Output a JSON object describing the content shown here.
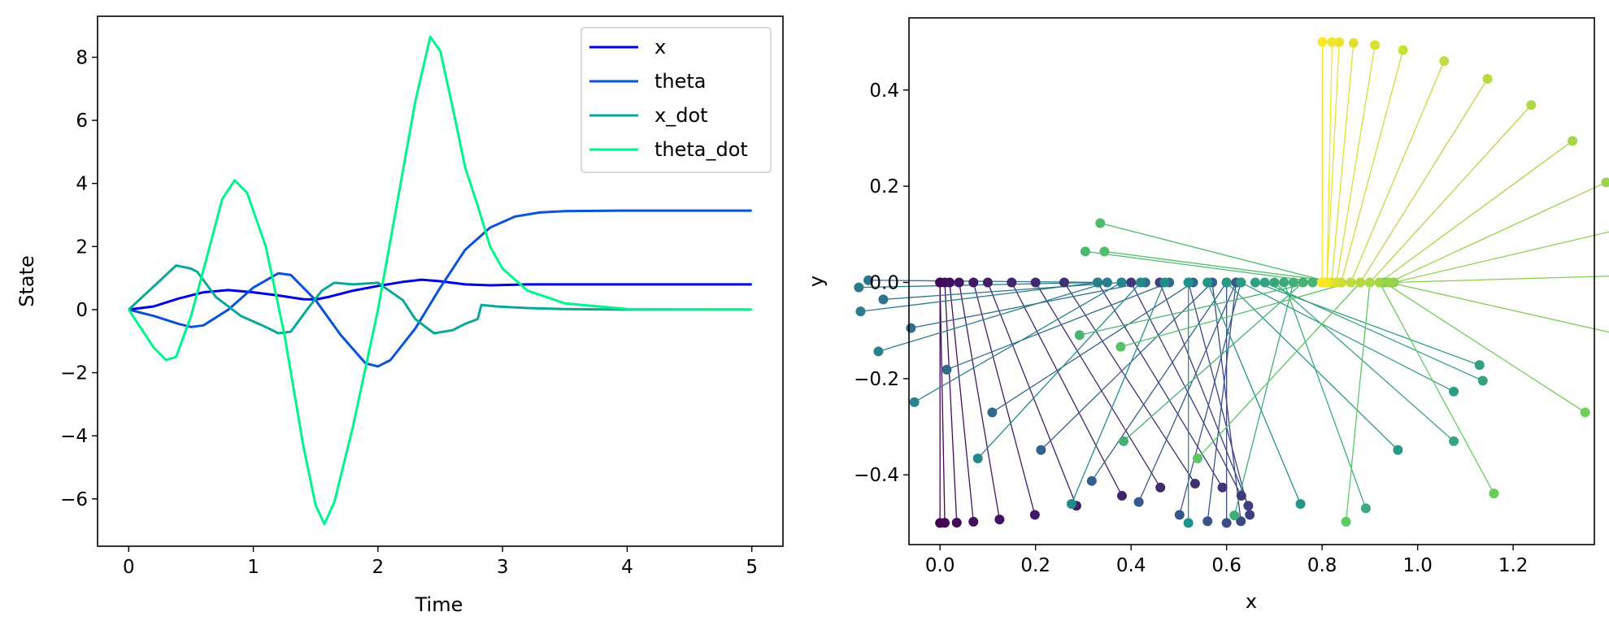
{
  "chart_data": [
    {
      "type": "line",
      "title": "",
      "xlabel": "Time",
      "ylabel": "State",
      "xlim": [
        -0.25,
        5.25
      ],
      "ylim": [
        -7.5,
        9.3
      ],
      "xticks": [
        "0",
        "1",
        "2",
        "3",
        "4",
        "5"
      ],
      "yticks": [
        "−6",
        "−4",
        "−2",
        "0",
        "2",
        "4",
        "6",
        "8"
      ],
      "legend_position": "top-right",
      "grid": false,
      "series": [
        {
          "name": "x",
          "color": "#0000e6",
          "points": [
            [
              0,
              0
            ],
            [
              0.2,
              0.1
            ],
            [
              0.4,
              0.35
            ],
            [
              0.6,
              0.55
            ],
            [
              0.8,
              0.62
            ],
            [
              1.0,
              0.55
            ],
            [
              1.2,
              0.45
            ],
            [
              1.4,
              0.33
            ],
            [
              1.5,
              0.32
            ],
            [
              1.6,
              0.4
            ],
            [
              1.8,
              0.6
            ],
            [
              2.0,
              0.75
            ],
            [
              2.2,
              0.88
            ],
            [
              2.35,
              0.95
            ],
            [
              2.5,
              0.9
            ],
            [
              2.7,
              0.8
            ],
            [
              2.9,
              0.77
            ],
            [
              3.2,
              0.8
            ],
            [
              4.0,
              0.8
            ],
            [
              5.0,
              0.8
            ]
          ]
        },
        {
          "name": "theta",
          "color": "#0a52d6",
          "points": [
            [
              0,
              0
            ],
            [
              0.2,
              -0.2
            ],
            [
              0.4,
              -0.45
            ],
            [
              0.5,
              -0.55
            ],
            [
              0.6,
              -0.5
            ],
            [
              0.8,
              0.0
            ],
            [
              1.0,
              0.7
            ],
            [
              1.2,
              1.15
            ],
            [
              1.3,
              1.1
            ],
            [
              1.5,
              0.3
            ],
            [
              1.7,
              -0.8
            ],
            [
              1.9,
              -1.7
            ],
            [
              2.0,
              -1.8
            ],
            [
              2.1,
              -1.6
            ],
            [
              2.3,
              -0.6
            ],
            [
              2.5,
              0.7
            ],
            [
              2.7,
              1.9
            ],
            [
              2.9,
              2.6
            ],
            [
              3.1,
              2.95
            ],
            [
              3.3,
              3.08
            ],
            [
              3.5,
              3.12
            ],
            [
              4.0,
              3.14
            ],
            [
              5.0,
              3.14
            ]
          ]
        },
        {
          "name": "x_dot",
          "color": "#0aa898",
          "points": [
            [
              0,
              0
            ],
            [
              0.15,
              0.55
            ],
            [
              0.3,
              1.1
            ],
            [
              0.38,
              1.4
            ],
            [
              0.5,
              1.3
            ],
            [
              0.55,
              1.2
            ],
            [
              0.7,
              0.4
            ],
            [
              0.9,
              -0.2
            ],
            [
              1.1,
              -0.55
            ],
            [
              1.2,
              -0.75
            ],
            [
              1.3,
              -0.7
            ],
            [
              1.45,
              0.1
            ],
            [
              1.55,
              0.6
            ],
            [
              1.65,
              0.85
            ],
            [
              1.8,
              0.8
            ],
            [
              2.0,
              0.85
            ],
            [
              2.2,
              0.3
            ],
            [
              2.3,
              -0.3
            ],
            [
              2.45,
              -0.75
            ],
            [
              2.6,
              -0.65
            ],
            [
              2.7,
              -0.45
            ],
            [
              2.8,
              -0.3
            ],
            [
              2.83,
              0.15
            ],
            [
              2.95,
              0.1
            ],
            [
              3.2,
              0.05
            ],
            [
              3.5,
              0.02
            ],
            [
              4.0,
              0
            ],
            [
              5.0,
              0
            ]
          ]
        },
        {
          "name": "theta_dot",
          "color": "#00f58a",
          "points": [
            [
              0,
              0
            ],
            [
              0.1,
              -0.6
            ],
            [
              0.2,
              -1.2
            ],
            [
              0.3,
              -1.6
            ],
            [
              0.38,
              -1.5
            ],
            [
              0.5,
              -0.2
            ],
            [
              0.65,
              2.0
            ],
            [
              0.75,
              3.5
            ],
            [
              0.85,
              4.1
            ],
            [
              0.95,
              3.7
            ],
            [
              1.1,
              2.0
            ],
            [
              1.25,
              -0.8
            ],
            [
              1.4,
              -4.3
            ],
            [
              1.5,
              -6.2
            ],
            [
              1.57,
              -6.8
            ],
            [
              1.65,
              -6.1
            ],
            [
              1.8,
              -3.7
            ],
            [
              2.0,
              0.0
            ],
            [
              2.15,
              3.3
            ],
            [
              2.3,
              6.6
            ],
            [
              2.42,
              8.65
            ],
            [
              2.5,
              8.2
            ],
            [
              2.6,
              6.4
            ],
            [
              2.7,
              4.5
            ],
            [
              2.8,
              3.3
            ],
            [
              2.9,
              2.0
            ],
            [
              3.0,
              1.3
            ],
            [
              3.2,
              0.6
            ],
            [
              3.5,
              0.2
            ],
            [
              4.0,
              0.02
            ],
            [
              5.0,
              0
            ]
          ]
        }
      ]
    },
    {
      "type": "scatter",
      "title": "",
      "xlabel": "x",
      "ylabel": "y",
      "xlim": [
        -0.065,
        1.37
      ],
      "ylim": [
        -0.545,
        0.55
      ],
      "xticks": [
        "0.0",
        "0.2",
        "0.4",
        "0.6",
        "0.8",
        "1.0",
        "1.2"
      ],
      "yticks": [
        "−0.4",
        "−0.2",
        "0.0",
        "0.2",
        "0.4"
      ],
      "grid": false,
      "colormap": [
        "#440154",
        "#3b528b",
        "#21918c",
        "#5ec962",
        "#fde725"
      ],
      "pendulum_length": 0.5,
      "frames": [
        {
          "x": 0.0,
          "theta": 0.0
        },
        {
          "x": 0.0,
          "theta": 0.02
        },
        {
          "x": 0.01,
          "theta": 0.05
        },
        {
          "x": 0.02,
          "theta": 0.1
        },
        {
          "x": 0.04,
          "theta": 0.17
        },
        {
          "x": 0.07,
          "theta": 0.26
        },
        {
          "x": 0.1,
          "theta": 0.38
        },
        {
          "x": 0.15,
          "theta": 0.48
        },
        {
          "x": 0.2,
          "theta": 0.55
        },
        {
          "x": 0.26,
          "theta": 0.58
        },
        {
          "x": 0.33,
          "theta": 0.55
        },
        {
          "x": 0.4,
          "theta": 0.48
        },
        {
          "x": 0.46,
          "theta": 0.38
        },
        {
          "x": 0.52,
          "theta": 0.26
        },
        {
          "x": 0.57,
          "theta": 0.12
        },
        {
          "x": 0.6,
          "theta": 0.0
        },
        {
          "x": 0.62,
          "theta": -0.12
        },
        {
          "x": 0.63,
          "theta": -0.26
        },
        {
          "x": 0.62,
          "theta": -0.42
        },
        {
          "x": 0.6,
          "theta": -0.6
        },
        {
          "x": 0.57,
          "theta": -0.8
        },
        {
          "x": 0.53,
          "theta": -1.0
        },
        {
          "x": 0.48,
          "theta": -1.2
        },
        {
          "x": 0.43,
          "theta": -1.38
        },
        {
          "x": 0.38,
          "theta": -1.5
        },
        {
          "x": 0.35,
          "theta": -1.58
        },
        {
          "x": 0.33,
          "theta": -1.55
        },
        {
          "x": 0.33,
          "theta": -1.45
        },
        {
          "x": 0.35,
          "theta": -1.28
        },
        {
          "x": 0.38,
          "theta": -1.05
        },
        {
          "x": 0.42,
          "theta": -0.75
        },
        {
          "x": 0.47,
          "theta": -0.4
        },
        {
          "x": 0.52,
          "theta": 0.0
        },
        {
          "x": 0.56,
          "theta": 0.4
        },
        {
          "x": 0.6,
          "theta": 0.8
        },
        {
          "x": 0.63,
          "theta": 1.1
        },
        {
          "x": 0.66,
          "theta": 1.22
        },
        {
          "x": 0.68,
          "theta": 1.15
        },
        {
          "x": 0.7,
          "theta": 0.85
        },
        {
          "x": 0.72,
          "theta": 0.35
        },
        {
          "x": 0.74,
          "theta": -0.25
        },
        {
          "x": 0.76,
          "theta": -0.85
        },
        {
          "x": 0.78,
          "theta": -1.35
        },
        {
          "x": 0.8,
          "theta": -1.7
        },
        {
          "x": 0.82,
          "theta": -1.82
        },
        {
          "x": 0.84,
          "theta": -1.7
        },
        {
          "x": 0.86,
          "theta": -1.3
        },
        {
          "x": 0.88,
          "theta": -0.75
        },
        {
          "x": 0.9,
          "theta": -0.1
        },
        {
          "x": 0.92,
          "theta": 0.5
        },
        {
          "x": 0.93,
          "theta": 1.0
        },
        {
          "x": 0.94,
          "theta": 1.35
        },
        {
          "x": 0.95,
          "theta": 1.6
        },
        {
          "x": 0.95,
          "theta": 1.8
        },
        {
          "x": 0.94,
          "theta": 2.0
        },
        {
          "x": 0.92,
          "theta": 2.2
        },
        {
          "x": 0.9,
          "theta": 2.4
        },
        {
          "x": 0.88,
          "theta": 2.58
        },
        {
          "x": 0.86,
          "theta": 2.74
        },
        {
          "x": 0.84,
          "theta": 2.88
        },
        {
          "x": 0.83,
          "theta": 2.98
        },
        {
          "x": 0.82,
          "theta": 3.05
        },
        {
          "x": 0.81,
          "theta": 3.09
        },
        {
          "x": 0.81,
          "theta": 3.12
        },
        {
          "x": 0.8,
          "theta": 3.14
        }
      ]
    }
  ]
}
